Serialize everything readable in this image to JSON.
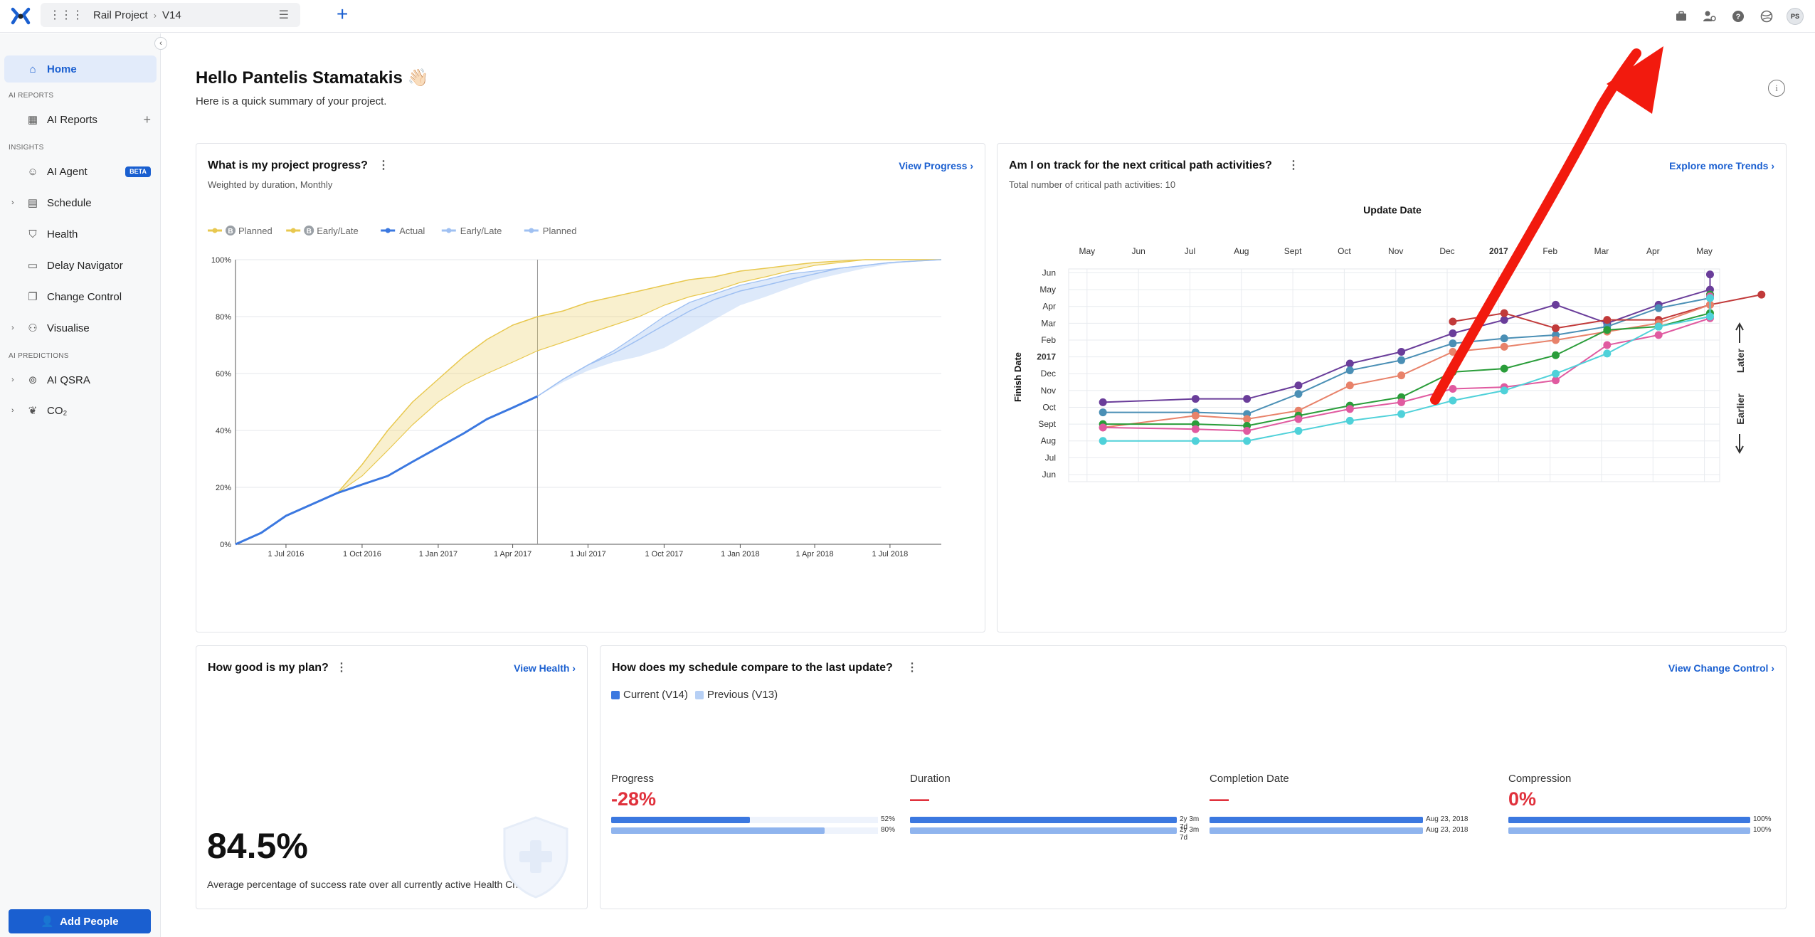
{
  "app": {
    "project": "Rail Project",
    "version": "V14",
    "avatar_initials": "PS"
  },
  "sidebar": {
    "home": "Home",
    "section_ai_reports": "AI REPORTS",
    "ai_reports": "AI Reports",
    "section_insights": "INSIGHTS",
    "ai_agent": "AI Agent",
    "beta": "BETA",
    "schedule": "Schedule",
    "health": "Health",
    "delay_navigator": "Delay Navigator",
    "change_control": "Change Control",
    "visualise": "Visualise",
    "section_ai_predictions": "AI PREDICTIONS",
    "ai_qsra": "AI QSRA",
    "co2": "CO₂",
    "add_people": "Add People"
  },
  "header": {
    "greeting": "Hello Pantelis Stamatakis 👋🏻",
    "subtitle": "Here is a quick summary of your project."
  },
  "progress_card": {
    "title": "What is my project progress?",
    "subtitle": "Weighted by duration, Monthly",
    "link": "View Progress",
    "legend": [
      {
        "label": "Planned",
        "badge": "B",
        "color": "#e8c84f"
      },
      {
        "label": "Early/Late",
        "badge": "B",
        "color": "#e8c84f"
      },
      {
        "label": "Actual",
        "color": "#3b78e0"
      },
      {
        "label": "Early/Late",
        "color": "#9fc0f2"
      },
      {
        "label": "Planned",
        "color": "#9fc0f2"
      }
    ]
  },
  "trends_card": {
    "title": "Am I on track for the next critical path activities?",
    "subtitle": "Total number of critical path activities: 10",
    "link": "Explore more Trends",
    "top_axis_title": "Update Date",
    "y_axis_title": "Finish Date",
    "later": "Later",
    "earlier": "Earlier"
  },
  "plan_card": {
    "title": "How good is my plan?",
    "link": "View Health",
    "value": "84.5%",
    "caption": "Average percentage of success rate over all currently active Health Checks."
  },
  "compare_card": {
    "title": "How does my schedule compare to the last update?",
    "link": "View Change Control",
    "legend_current": "Current (V14)",
    "legend_previous": "Previous (V13)",
    "metrics": [
      {
        "label": "Progress",
        "value": "-28%",
        "current": 0.52,
        "previous": 0.8,
        "current_label": "52%",
        "previous_label": "80%"
      },
      {
        "label": "Duration",
        "value": "—",
        "current": 1,
        "previous": 1,
        "current_label": "2y 3m 7d",
        "previous_label": "2y 3m 7d"
      },
      {
        "label": "Completion Date",
        "value": "—",
        "current": 1,
        "previous": 1,
        "current_label": "Aug 23, 2018",
        "previous_label": "Aug 23, 2018"
      },
      {
        "label": "Compression",
        "value": "0%",
        "current": 1,
        "previous": 1,
        "current_label": "100%",
        "previous_label": "100%"
      }
    ]
  },
  "chart_data": [
    {
      "type": "area",
      "title": "What is my project progress?",
      "x_ticks": [
        "1 Jul 2016",
        "1 Oct 2016",
        "1 Jan 2017",
        "1 Apr 2017",
        "1 Jul 2017",
        "1 Oct 2017",
        "1 Jan 2018",
        "1 Apr 2018",
        "1 Jul 2018"
      ],
      "y_ticks": [
        "0%",
        "20%",
        "40%",
        "60%",
        "80%",
        "100%"
      ],
      "ylim": [
        0,
        100
      ],
      "xlim": [
        "2016-05-01",
        "2018-09-01"
      ],
      "data_date": "2017-05-01",
      "series": [
        {
          "name": "Actual",
          "x": [
            "2016-05-01",
            "2016-06-01",
            "2016-07-01",
            "2016-08-01",
            "2016-09-01",
            "2016-10-01",
            "2016-11-01",
            "2016-12-01",
            "2017-01-01",
            "2017-02-01",
            "2017-03-01",
            "2017-04-01",
            "2017-05-01"
          ],
          "values": [
            0,
            4,
            10,
            14,
            18,
            21,
            24,
            29,
            34,
            39,
            44,
            48,
            52
          ]
        },
        {
          "name": "Planned",
          "x": [
            "2017-05-01",
            "2017-06-01",
            "2017-07-01",
            "2017-08-01",
            "2017-09-01",
            "2017-10-01",
            "2017-11-01",
            "2017-12-01",
            "2018-01-01",
            "2018-02-01",
            "2018-03-01",
            "2018-04-01",
            "2018-05-01",
            "2018-06-01",
            "2018-07-01",
            "2018-08-01",
            "2018-09-01"
          ],
          "values": [
            52,
            58,
            63,
            67,
            72,
            77,
            82,
            86,
            89,
            91,
            93,
            95,
            97,
            98,
            99,
            99.5,
            100
          ]
        },
        {
          "name": "Early/Late",
          "x": [
            "2017-05-01",
            "2017-06-01",
            "2017-07-01",
            "2017-08-01",
            "2017-09-01",
            "2017-10-01",
            "2017-11-01",
            "2017-12-01",
            "2018-01-01",
            "2018-02-01",
            "2018-03-01",
            "2018-04-01",
            "2018-05-01",
            "2018-06-01",
            "2018-07-01",
            "2018-08-01",
            "2018-09-01"
          ],
          "upper": [
            52,
            58,
            63,
            68,
            74,
            80,
            85,
            88,
            91,
            93,
            95,
            96,
            97,
            98,
            99,
            99.5,
            100
          ],
          "lower": [
            52,
            57,
            61,
            64,
            66,
            69,
            74,
            79,
            84,
            87,
            90,
            93,
            95,
            97,
            98.5,
            99.5,
            100
          ]
        },
        {
          "name": "Baseline Planned",
          "x": [
            "2016-05-01",
            "2016-06-01",
            "2016-07-01",
            "2016-08-01",
            "2016-09-01",
            "2016-10-01",
            "2016-11-01",
            "2016-12-01",
            "2017-01-01",
            "2017-02-01",
            "2017-03-01",
            "2017-04-01",
            "2017-05-01",
            "2017-06-01",
            "2017-07-01",
            "2017-08-01",
            "2017-09-01",
            "2017-10-01",
            "2017-11-01",
            "2017-12-01",
            "2018-01-01",
            "2018-02-01",
            "2018-03-01",
            "2018-04-01",
            "2018-05-01",
            "2018-06-01",
            "2018-07-01",
            "2018-08-01",
            "2018-09-01"
          ],
          "upper": [
            0,
            4,
            10,
            14,
            18,
            28,
            40,
            50,
            58,
            66,
            72,
            77,
            80,
            82,
            85,
            87,
            89,
            91,
            93,
            94,
            96,
            97,
            98,
            99,
            99.5,
            100,
            100,
            100,
            100
          ],
          "lower": [
            0,
            4,
            10,
            14,
            18,
            24,
            33,
            42,
            50,
            56,
            60,
            64,
            68,
            71,
            74,
            77,
            80,
            84,
            87,
            89,
            92,
            94,
            96,
            98,
            99,
            100,
            100,
            100,
            100
          ]
        }
      ]
    },
    {
      "type": "line",
      "title": "Am I on track for the next critical path activities?",
      "xlabel": "Update Date",
      "ylabel": "Finish Date",
      "x_ticks": [
        "May",
        "Jun",
        "Jul",
        "Aug",
        "Sept",
        "Oct",
        "Nov",
        "Dec",
        "2017",
        "Feb",
        "Mar",
        "Apr",
        "May"
      ],
      "y_ticks": [
        "Jun",
        "Jul",
        "Aug",
        "Sept",
        "Oct",
        "Nov",
        "Dec",
        "2017",
        "Feb",
        "Mar",
        "Apr",
        "May",
        "Jun"
      ],
      "x_dates": [
        "2016-05",
        "2016-06",
        "2016-07",
        "2016-08",
        "2016-09",
        "2016-10",
        "2016-11",
        "2016-12",
        "2017-01",
        "2017-02",
        "2017-03",
        "2017-04",
        "2017-05"
      ],
      "y_dates": [
        "2016-06",
        "2016-07",
        "2016-08",
        "2016-09",
        "2016-10",
        "2016-11",
        "2016-12",
        "2017-01",
        "2017-02",
        "2017-03",
        "2017-04",
        "2017-05",
        "2017-06"
      ],
      "series": [
        {
          "color": "#6a3d9a",
          "points": [
            [
              0.5,
              4.3
            ],
            [
              2.3,
              4.5
            ],
            [
              3.3,
              4.5
            ],
            [
              4.3,
              5.3
            ],
            [
              5.3,
              6.6
            ],
            [
              6.3,
              7.3
            ],
            [
              7.3,
              8.4
            ],
            [
              8.3,
              9.2
            ],
            [
              9.3,
              10.1
            ],
            [
              10.3,
              9.0
            ],
            [
              11.3,
              10.1
            ],
            [
              12.3,
              11.0
            ],
            [
              12.3,
              11.9
            ]
          ]
        },
        {
          "color": "#4a8fb5",
          "points": [
            [
              0.5,
              3.7
            ],
            [
              2.3,
              3.7
            ],
            [
              3.3,
              3.6
            ],
            [
              4.3,
              4.8
            ],
            [
              5.3,
              6.2
            ],
            [
              6.3,
              6.8
            ],
            [
              7.3,
              7.8
            ],
            [
              8.3,
              8.1
            ],
            [
              9.3,
              8.3
            ],
            [
              10.3,
              8.8
            ],
            [
              11.3,
              9.9
            ],
            [
              12.3,
              10.5
            ],
            [
              12.3,
              10.7
            ]
          ]
        },
        {
          "color": "#c13a3a",
          "points": [
            [
              7.3,
              9.1
            ],
            [
              8.3,
              9.6
            ],
            [
              9.3,
              8.7
            ],
            [
              10.3,
              9.2
            ],
            [
              11.3,
              9.2
            ],
            [
              12.3,
              10.1
            ],
            [
              13.3,
              10.7
            ]
          ]
        },
        {
          "color": "#e8826a",
          "points": [
            [
              0.5,
              2.8
            ],
            [
              2.3,
              3.5
            ],
            [
              3.3,
              3.3
            ],
            [
              4.3,
              3.8
            ],
            [
              5.3,
              5.3
            ],
            [
              6.3,
              5.9
            ],
            [
              7.3,
              7.3
            ],
            [
              8.3,
              7.6
            ],
            [
              9.3,
              8.0
            ],
            [
              10.3,
              8.5
            ],
            [
              11.3,
              9.0
            ],
            [
              12.3,
              10.1
            ],
            [
              12.3,
              10.7
            ]
          ]
        },
        {
          "color": "#2a9d3a",
          "points": [
            [
              0.5,
              3.0
            ],
            [
              2.3,
              3.0
            ],
            [
              3.3,
              2.9
            ],
            [
              4.3,
              3.5
            ],
            [
              5.3,
              4.1
            ],
            [
              6.3,
              4.6
            ],
            [
              7.3,
              6.1
            ],
            [
              8.3,
              6.3
            ],
            [
              9.3,
              7.1
            ],
            [
              10.3,
              8.6
            ],
            [
              11.3,
              8.8
            ],
            [
              12.3,
              9.6
            ],
            [
              12.3,
              10.7
            ]
          ]
        },
        {
          "color": "#e05aa0",
          "points": [
            [
              0.5,
              2.8
            ],
            [
              2.3,
              2.7
            ],
            [
              3.3,
              2.6
            ],
            [
              4.3,
              3.3
            ],
            [
              5.3,
              3.9
            ],
            [
              6.3,
              4.3
            ],
            [
              7.3,
              5.1
            ],
            [
              8.3,
              5.2
            ],
            [
              9.3,
              5.6
            ],
            [
              10.3,
              7.7
            ],
            [
              11.3,
              8.3
            ],
            [
              12.3,
              9.3
            ],
            [
              12.3,
              10.6
            ]
          ]
        },
        {
          "color": "#4fd1d9",
          "points": [
            [
              0.5,
              2.0
            ],
            [
              2.3,
              2.0
            ],
            [
              3.3,
              2.0
            ],
            [
              4.3,
              2.6
            ],
            [
              5.3,
              3.2
            ],
            [
              6.3,
              3.6
            ],
            [
              7.3,
              4.4
            ],
            [
              8.3,
              5.0
            ],
            [
              9.3,
              6.0
            ],
            [
              10.3,
              7.2
            ],
            [
              11.3,
              8.8
            ],
            [
              12.3,
              9.4
            ],
            [
              12.3,
              10.5
            ]
          ]
        }
      ]
    }
  ]
}
